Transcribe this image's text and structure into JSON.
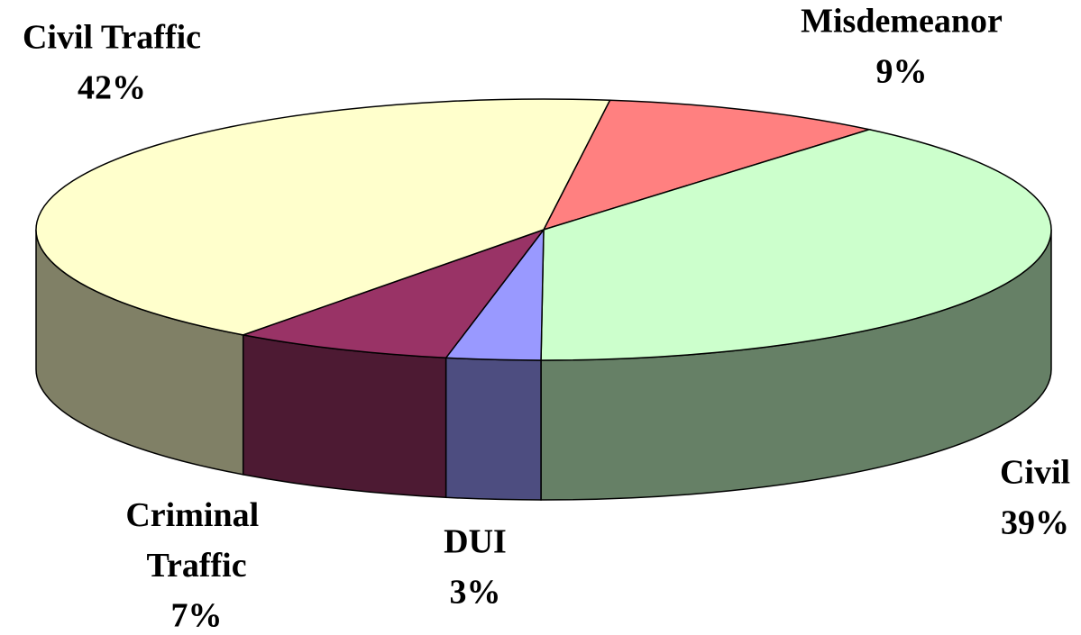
{
  "chart_data": {
    "type": "pie",
    "categories": [
      "Misdemeanor",
      "Civil",
      "DUI",
      "Criminal Traffic",
      "Civil Traffic"
    ],
    "values": [
      9,
      39,
      3,
      7,
      42
    ],
    "value_labels": [
      "9%",
      "39%",
      "3%",
      "7%",
      "42%"
    ],
    "colors": [
      "#ff8080",
      "#ccffcc",
      "#9999ff",
      "#993366",
      "#ffffcc"
    ],
    "three_d": true
  }
}
